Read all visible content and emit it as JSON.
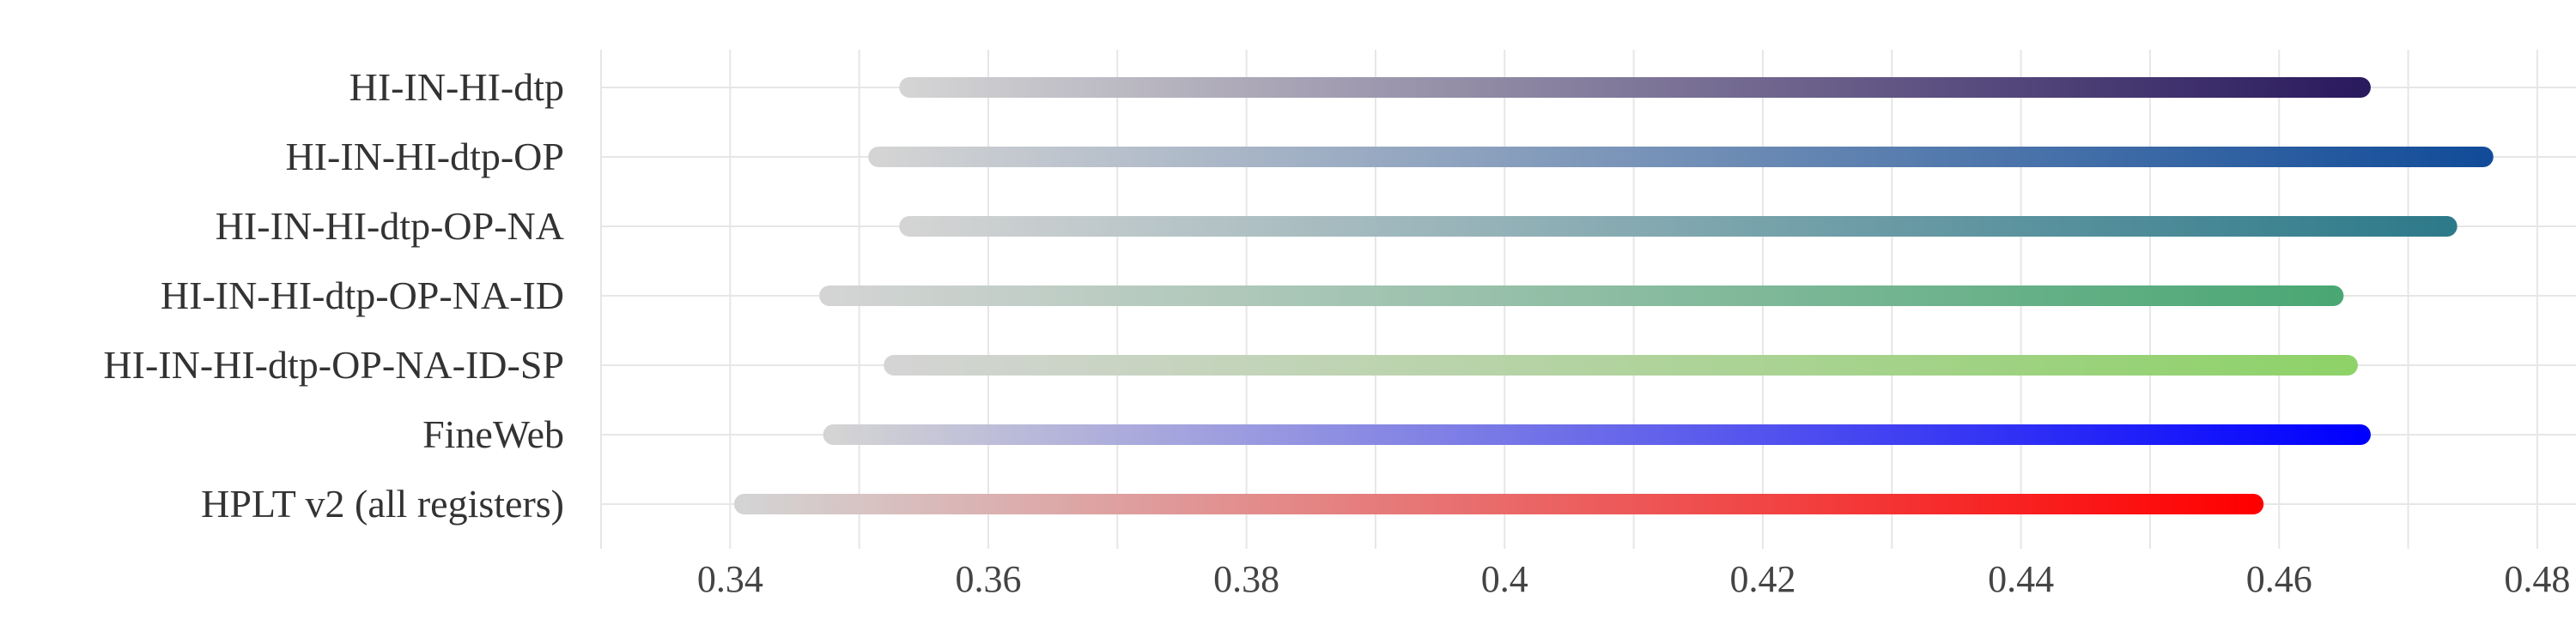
{
  "chart_data": {
    "type": "range-bar",
    "title": "",
    "xlabel": "",
    "ylabel": "",
    "xlim": [
      0.33,
      0.483
    ],
    "xticks": [
      "0.34",
      "0.36",
      "0.38",
      "0.4",
      "0.42",
      "0.44",
      "0.46",
      "0.48"
    ],
    "grid": true,
    "categories": [
      "HI-IN-HI-dtp",
      "HI-IN-HI-dtp-OP",
      "HI-IN-HI-dtp-OP-NA",
      "HI-IN-HI-dtp-OP-NA-ID",
      "HI-IN-HI-dtp-OP-NA-ID-SP",
      "FineWeb",
      "HPLT v2 (all registers)"
    ],
    "series": [
      {
        "start": 0.3539,
        "end": 0.4663,
        "color": "#2a1a5e"
      },
      {
        "start": 0.3515,
        "end": 0.4758,
        "color": "#124c99"
      },
      {
        "start": 0.3539,
        "end": 0.473,
        "color": "#2d7a8a"
      },
      {
        "start": 0.3477,
        "end": 0.4642,
        "color": "#4aa774"
      },
      {
        "start": 0.3527,
        "end": 0.4653,
        "color": "#8ed268"
      },
      {
        "start": 0.348,
        "end": 0.4663,
        "color": "#0000ff"
      },
      {
        "start": 0.3411,
        "end": 0.458,
        "color": "#ff0000"
      }
    ],
    "start_color": "#d4d4d4"
  }
}
